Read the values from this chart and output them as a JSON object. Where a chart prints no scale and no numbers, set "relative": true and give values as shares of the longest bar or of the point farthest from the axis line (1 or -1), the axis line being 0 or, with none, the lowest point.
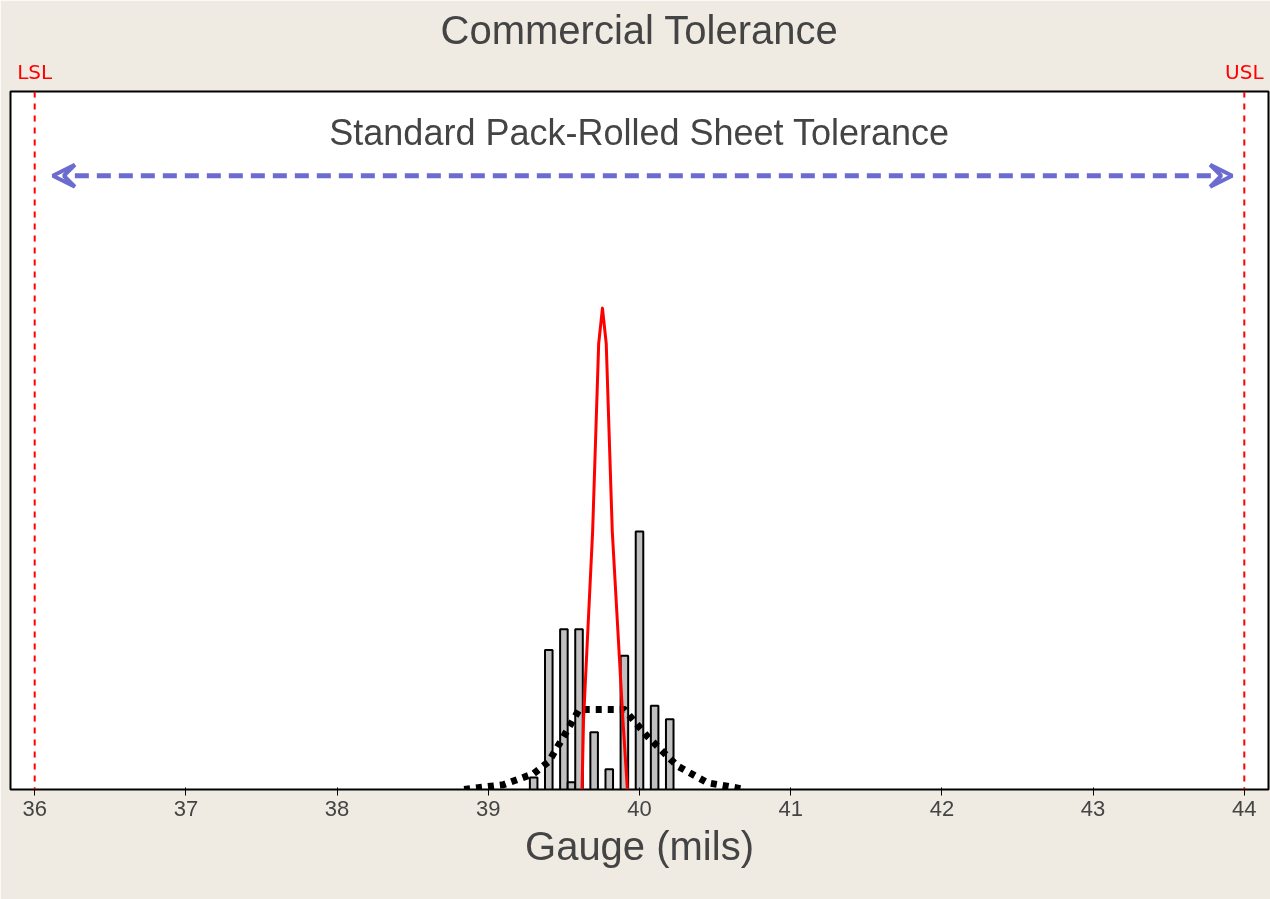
{
  "chart_data": {
    "type": "histogram",
    "title": "Commercial Tolerance",
    "xlabel": "Gauge (mils)",
    "relative": true,
    "bins": [
      39.275,
      39.325,
      39.375,
      39.425,
      39.475,
      39.525,
      39.575,
      39.625,
      39.675,
      39.725,
      39.775,
      39.825,
      39.875,
      39.925,
      39.975,
      40.025,
      40.075,
      40.125,
      40.175,
      40.225
    ],
    "values": [
      0.025,
      null,
      0.29,
      null,
      0.333,
      0.015,
      0.333,
      null,
      0.119,
      null,
      0.042,
      null,
      0.278,
      null,
      0.536,
      null,
      0.174,
      null,
      0.146
    ],
    "color": "#c0c0c0",
    "series": [
      {
        "type": "line",
        "color": "#000000",
        "line_style": "dashed",
        "x": [
          38.84,
          39.1,
          39.3,
          39.4,
          39.5,
          39.6,
          39.9,
          40.05,
          40.25,
          40.45,
          40.7
        ],
        "values": [
          0,
          0.01,
          0.033,
          0.058,
          0.111,
          0.166,
          0.166,
          0.111,
          0.049,
          0.014,
          0
        ]
      },
      {
        "type": "line",
        "color": "#ff0000",
        "line_style": "solid",
        "x": [
          39.62,
          39.63,
          39.69,
          39.73,
          39.755,
          39.78,
          39.82,
          39.89,
          39.92
        ],
        "values": [
          0,
          0.146,
          0.536,
          0.926,
          1,
          0.926,
          0.536,
          0.146,
          0
        ]
      }
    ],
    "xlim": [
      35.84,
      44.16
    ],
    "xticks": [
      36,
      37,
      38,
      39,
      40,
      41,
      42,
      43,
      44
    ],
    "grid": false,
    "ref_lines": [
      {
        "axis": "x",
        "value": 36,
        "label": "LSL",
        "color": "#ff0000",
        "line_style": "dashed"
      },
      {
        "axis": "x",
        "value": 44,
        "label": "USL",
        "color": "#ff0000",
        "line_style": "dashed"
      }
    ],
    "annotations": [
      "Standard Pack-Rolled Sheet Tolerance"
    ]
  }
}
